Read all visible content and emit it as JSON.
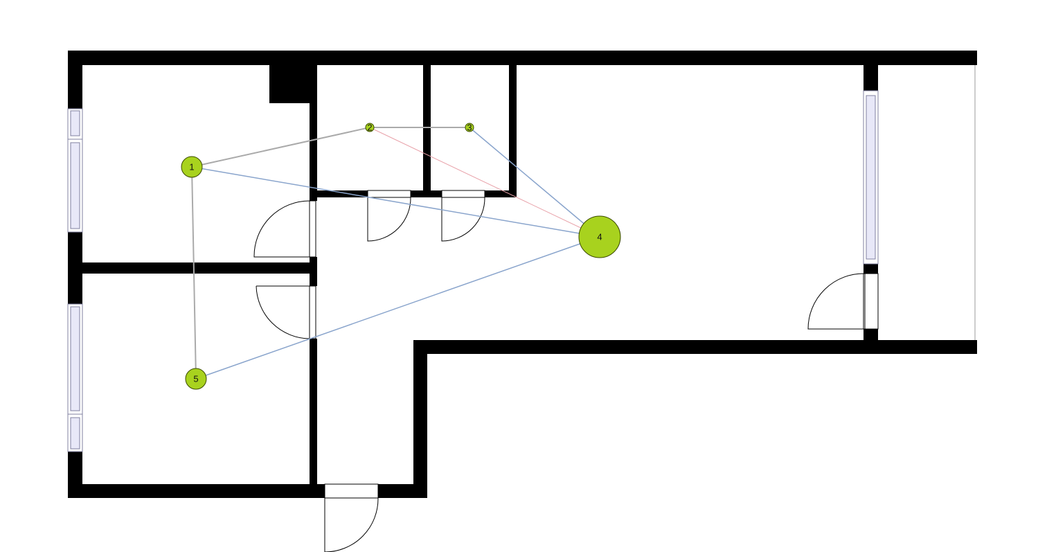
{
  "colors": {
    "wall": "#000000",
    "window_fill": "#e8e8f8",
    "window_stroke": "#8080a0",
    "door_stroke": "#000000",
    "node_fill": "#a8d21e",
    "node_stroke": "#3a4a00",
    "edge_gray": "#aaaaaa",
    "edge_blue": "#89a4cc",
    "edge_red": "#e8a0a8"
  },
  "nodes": [
    {
      "id": "1",
      "label": "1",
      "size": "medium"
    },
    {
      "id": "2",
      "label": "2",
      "size": "small"
    },
    {
      "id": "3",
      "label": "3",
      "size": "small"
    },
    {
      "id": "4",
      "label": "4",
      "size": "large"
    },
    {
      "id": "5",
      "label": "5",
      "size": "medium"
    }
  ],
  "edges": [
    {
      "from": "1",
      "to": "2",
      "kind": "gray"
    },
    {
      "from": "2",
      "to": "3",
      "kind": "gray"
    },
    {
      "from": "1",
      "to": "5",
      "kind": "gray"
    },
    {
      "from": "1",
      "to": "4",
      "kind": "blue"
    },
    {
      "from": "3",
      "to": "4",
      "kind": "blue"
    },
    {
      "from": "5",
      "to": "4",
      "kind": "blue"
    },
    {
      "from": "2",
      "to": "4",
      "kind": "red"
    }
  ]
}
